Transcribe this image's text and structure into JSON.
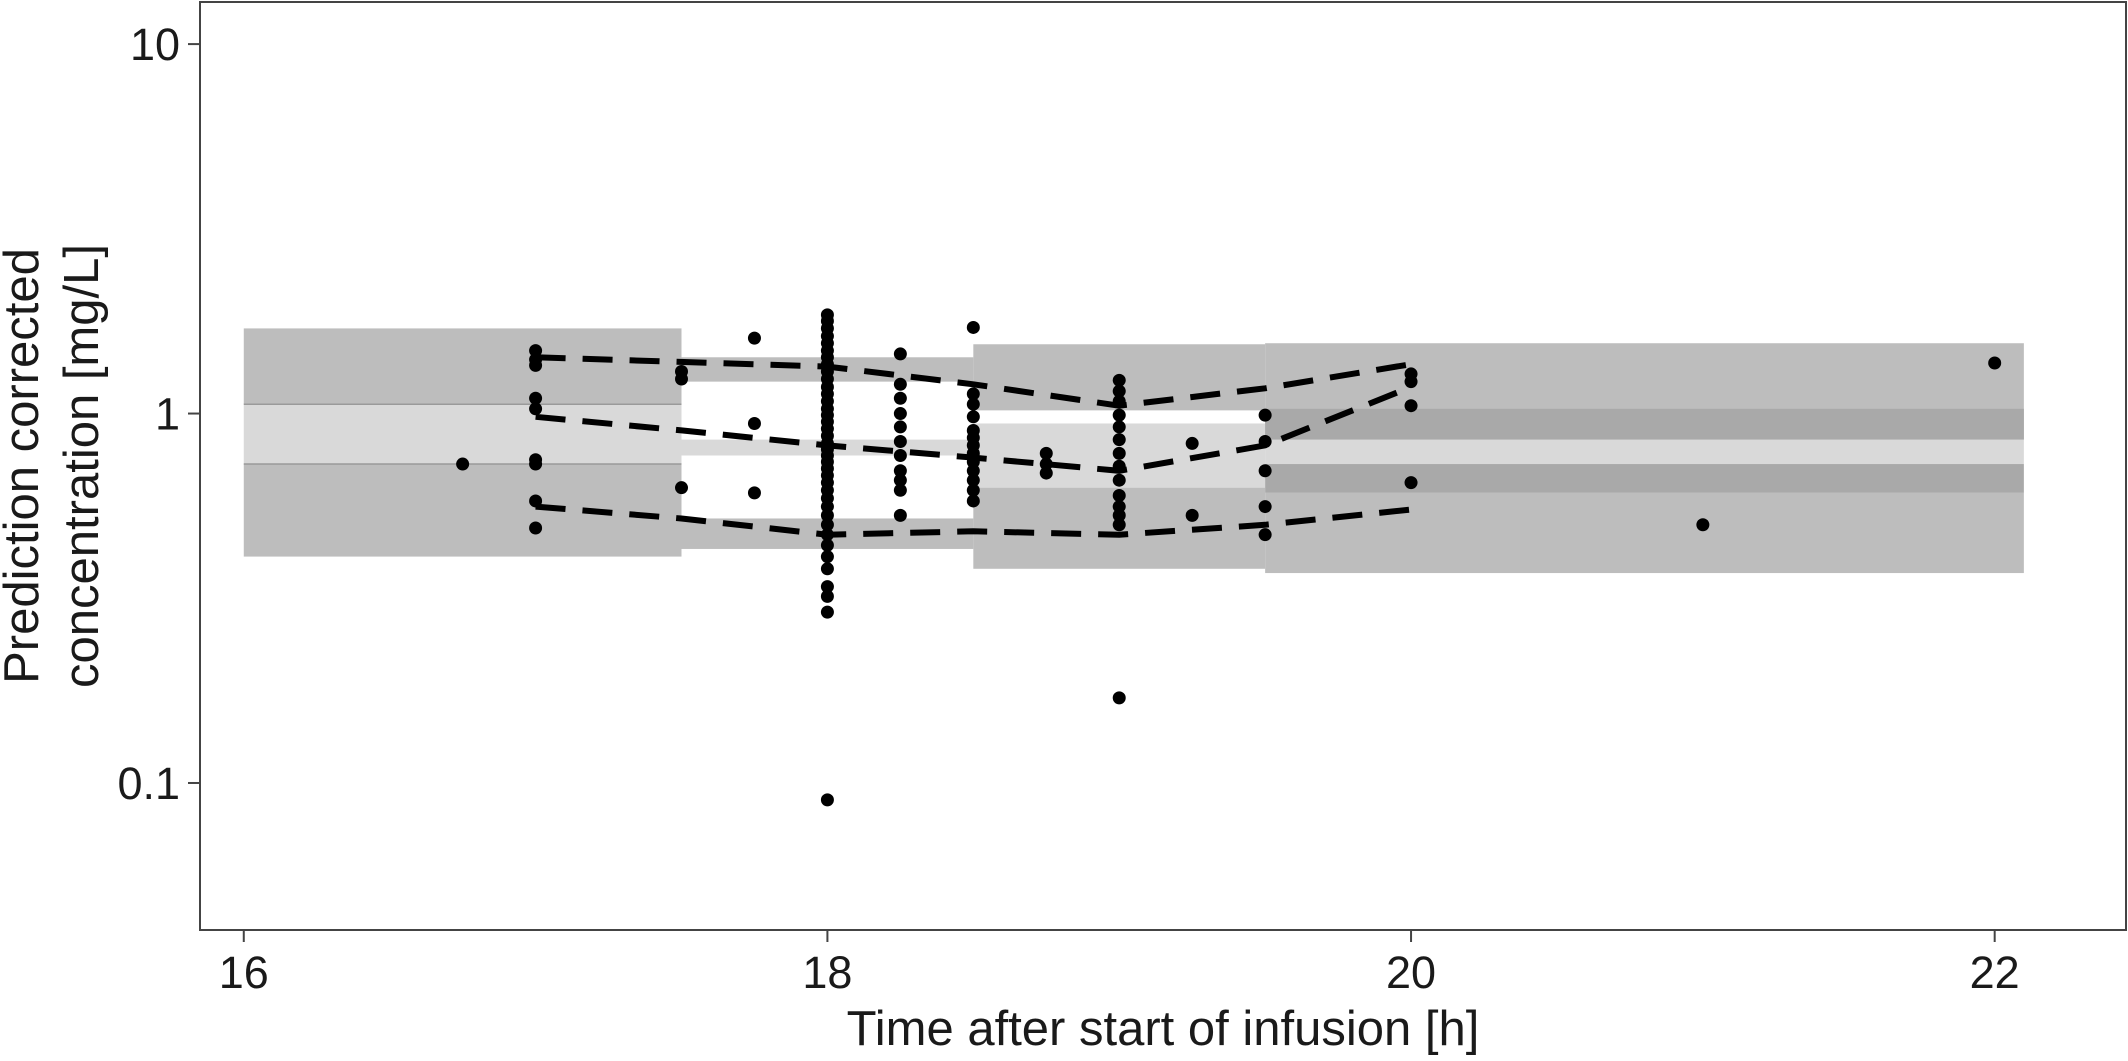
{
  "chart_data": {
    "type": "scatter",
    "title": "",
    "xlabel": "Time after start of infusion [h]",
    "ylabel_lines": [
      "Prediction corrected",
      "concentration [mg/L]"
    ],
    "x_scale": "linear",
    "y_scale": "log10",
    "xlim": [
      15.85,
      22.45
    ],
    "ylim": [
      0.04,
      13.0
    ],
    "x_ticks": [
      16,
      18,
      20,
      22
    ],
    "x_tick_labels": [
      "16",
      "18",
      "20",
      "22"
    ],
    "y_ticks": [
      0.1,
      1,
      10
    ],
    "y_tick_labels": [
      "0.1",
      "1",
      "10"
    ],
    "grid": false,
    "legend": "none",
    "colors": {
      "outer_band": "#bdbdbd",
      "inner_band": "#d9d9d9",
      "median_band_dark": "#a9a9a9",
      "points": "#000000",
      "percentile_lines": "#000000",
      "axis": "#444444"
    },
    "bins": [
      {
        "x_range": [
          16.0,
          17.5
        ],
        "p95_ci": [
          1.06,
          1.7
        ],
        "median_ci": [
          0.73,
          1.06
        ],
        "p5_ci": [
          0.41,
          0.73
        ]
      },
      {
        "x_range": [
          17.5,
          18.5
        ],
        "p95_ci": [
          1.22,
          1.42
        ],
        "median_ci": [
          0.77,
          0.85
        ],
        "p5_ci": [
          0.43,
          0.52
        ]
      },
      {
        "x_range": [
          18.5,
          19.5
        ],
        "p95_ci": [
          1.02,
          1.54
        ],
        "median_ci": [
          0.63,
          0.94
        ],
        "p5_ci": [
          0.38,
          0.63
        ]
      },
      {
        "x_range": [
          19.5,
          22.1
        ],
        "p95_ci": [
          0.85,
          1.55
        ],
        "median_ci": [
          0.73,
          0.85
        ],
        "p5_ci": [
          0.37,
          0.61
        ],
        "dark_bands": [
          [
            0.85,
            1.03
          ],
          [
            0.61,
            0.73
          ]
        ]
      }
    ],
    "percentile_lines": [
      {
        "name": "95th percentile",
        "x": [
          17.0,
          18.0,
          18.5,
          19.0,
          19.5,
          20.0
        ],
        "y": [
          1.42,
          1.34,
          1.2,
          1.05,
          1.17,
          1.36
        ]
      },
      {
        "name": "median",
        "x": [
          17.0,
          17.5,
          18.0,
          18.5,
          19.0,
          19.5,
          20.0
        ],
        "y": [
          0.98,
          0.9,
          0.82,
          0.76,
          0.7,
          0.82,
          1.18
        ]
      },
      {
        "name": "5th percentile",
        "x": [
          17.0,
          17.5,
          18.0,
          18.5,
          19.0,
          19.5,
          20.0
        ],
        "y": [
          0.56,
          0.52,
          0.47,
          0.48,
          0.47,
          0.5,
          0.55
        ]
      }
    ],
    "points": [
      {
        "x": 16.75,
        "y": 0.73
      },
      {
        "x": 17.0,
        "y": 1.48
      },
      {
        "x": 17.0,
        "y": 1.4
      },
      {
        "x": 17.0,
        "y": 1.35
      },
      {
        "x": 17.0,
        "y": 1.1
      },
      {
        "x": 17.0,
        "y": 1.03
      },
      {
        "x": 17.0,
        "y": 0.75
      },
      {
        "x": 17.0,
        "y": 0.73
      },
      {
        "x": 17.0,
        "y": 0.58
      },
      {
        "x": 17.0,
        "y": 0.49
      },
      {
        "x": 17.5,
        "y": 1.3
      },
      {
        "x": 17.5,
        "y": 1.24
      },
      {
        "x": 17.5,
        "y": 0.63
      },
      {
        "x": 17.75,
        "y": 1.6
      },
      {
        "x": 17.75,
        "y": 0.94
      },
      {
        "x": 17.75,
        "y": 0.61
      },
      {
        "x": 18.0,
        "y": 1.85
      },
      {
        "x": 18.0,
        "y": 1.78
      },
      {
        "x": 18.0,
        "y": 1.7
      },
      {
        "x": 18.0,
        "y": 1.62
      },
      {
        "x": 18.0,
        "y": 1.55
      },
      {
        "x": 18.0,
        "y": 1.48
      },
      {
        "x": 18.0,
        "y": 1.42
      },
      {
        "x": 18.0,
        "y": 1.36
      },
      {
        "x": 18.0,
        "y": 1.3
      },
      {
        "x": 18.0,
        "y": 1.24
      },
      {
        "x": 18.0,
        "y": 1.18
      },
      {
        "x": 18.0,
        "y": 1.13
      },
      {
        "x": 18.0,
        "y": 1.08
      },
      {
        "x": 18.0,
        "y": 1.03
      },
      {
        "x": 18.0,
        "y": 0.99
      },
      {
        "x": 18.0,
        "y": 0.95
      },
      {
        "x": 18.0,
        "y": 0.91
      },
      {
        "x": 18.0,
        "y": 0.87
      },
      {
        "x": 18.0,
        "y": 0.83
      },
      {
        "x": 18.0,
        "y": 0.8
      },
      {
        "x": 18.0,
        "y": 0.77
      },
      {
        "x": 18.0,
        "y": 0.74
      },
      {
        "x": 18.0,
        "y": 0.71
      },
      {
        "x": 18.0,
        "y": 0.68
      },
      {
        "x": 18.0,
        "y": 0.65
      },
      {
        "x": 18.0,
        "y": 0.62
      },
      {
        "x": 18.0,
        "y": 0.59
      },
      {
        "x": 18.0,
        "y": 0.56
      },
      {
        "x": 18.0,
        "y": 0.53
      },
      {
        "x": 18.0,
        "y": 0.5
      },
      {
        "x": 18.0,
        "y": 0.47
      },
      {
        "x": 18.0,
        "y": 0.44
      },
      {
        "x": 18.0,
        "y": 0.41
      },
      {
        "x": 18.0,
        "y": 0.38
      },
      {
        "x": 18.0,
        "y": 0.34
      },
      {
        "x": 18.0,
        "y": 0.32
      },
      {
        "x": 18.0,
        "y": 0.29
      },
      {
        "x": 18.0,
        "y": 0.09
      },
      {
        "x": 18.25,
        "y": 1.45
      },
      {
        "x": 18.25,
        "y": 1.2
      },
      {
        "x": 18.25,
        "y": 1.1
      },
      {
        "x": 18.25,
        "y": 1.0
      },
      {
        "x": 18.25,
        "y": 0.92
      },
      {
        "x": 18.25,
        "y": 0.84
      },
      {
        "x": 18.25,
        "y": 0.77
      },
      {
        "x": 18.25,
        "y": 0.7
      },
      {
        "x": 18.25,
        "y": 0.66
      },
      {
        "x": 18.25,
        "y": 0.62
      },
      {
        "x": 18.25,
        "y": 0.53
      },
      {
        "x": 18.5,
        "y": 1.71
      },
      {
        "x": 18.5,
        "y": 1.13
      },
      {
        "x": 18.5,
        "y": 1.06
      },
      {
        "x": 18.5,
        "y": 0.98
      },
      {
        "x": 18.5,
        "y": 0.9
      },
      {
        "x": 18.5,
        "y": 0.86
      },
      {
        "x": 18.5,
        "y": 0.82
      },
      {
        "x": 18.5,
        "y": 0.78
      },
      {
        "x": 18.5,
        "y": 0.74
      },
      {
        "x": 18.5,
        "y": 0.7
      },
      {
        "x": 18.5,
        "y": 0.66
      },
      {
        "x": 18.5,
        "y": 0.62
      },
      {
        "x": 18.5,
        "y": 0.58
      },
      {
        "x": 18.75,
        "y": 0.78
      },
      {
        "x": 18.75,
        "y": 0.73
      },
      {
        "x": 18.75,
        "y": 0.69
      },
      {
        "x": 19.0,
        "y": 1.23
      },
      {
        "x": 19.0,
        "y": 1.15
      },
      {
        "x": 19.0,
        "y": 1.08
      },
      {
        "x": 19.0,
        "y": 0.99
      },
      {
        "x": 19.0,
        "y": 0.92
      },
      {
        "x": 19.0,
        "y": 0.85
      },
      {
        "x": 19.0,
        "y": 0.78
      },
      {
        "x": 19.0,
        "y": 0.72
      },
      {
        "x": 19.0,
        "y": 0.66
      },
      {
        "x": 19.0,
        "y": 0.6
      },
      {
        "x": 19.0,
        "y": 0.56
      },
      {
        "x": 19.0,
        "y": 0.53
      },
      {
        "x": 19.0,
        "y": 0.5
      },
      {
        "x": 19.0,
        "y": 0.17
      },
      {
        "x": 19.25,
        "y": 0.83
      },
      {
        "x": 19.25,
        "y": 0.53
      },
      {
        "x": 19.5,
        "y": 0.99
      },
      {
        "x": 19.5,
        "y": 0.84
      },
      {
        "x": 19.5,
        "y": 0.7
      },
      {
        "x": 19.5,
        "y": 0.56
      },
      {
        "x": 19.5,
        "y": 0.47
      },
      {
        "x": 20.0,
        "y": 1.28
      },
      {
        "x": 20.0,
        "y": 1.22
      },
      {
        "x": 20.0,
        "y": 1.05
      },
      {
        "x": 20.0,
        "y": 0.65
      },
      {
        "x": 21.0,
        "y": 0.5
      },
      {
        "x": 22.0,
        "y": 1.37
      }
    ]
  }
}
